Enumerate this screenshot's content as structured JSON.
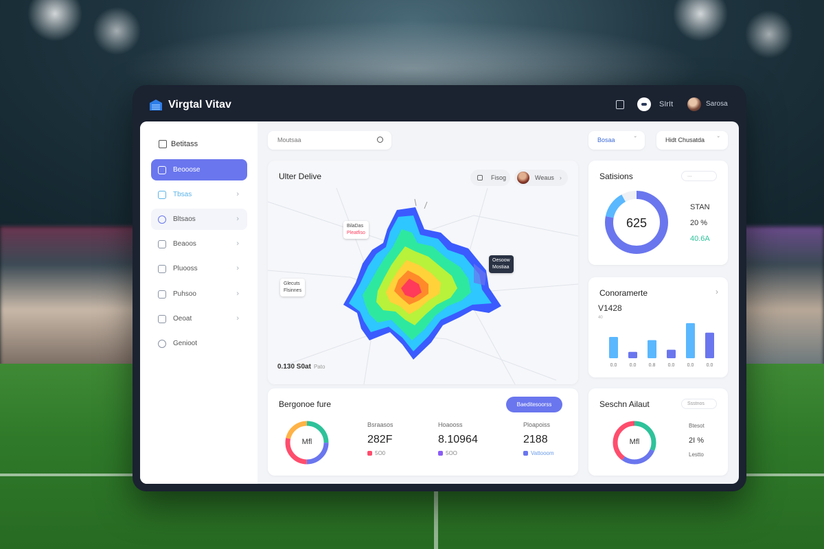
{
  "app": {
    "title": "Virgtal Vitav"
  },
  "titlebar": {
    "user_label": "SIrIt",
    "account_label": "Sarosa"
  },
  "sidebar": {
    "header": "Betitass",
    "items": [
      {
        "label": "Beooose"
      },
      {
        "label": "Tbsas"
      },
      {
        "label": "Bltsaos"
      },
      {
        "label": "Beaoos"
      },
      {
        "label": "Pluooss"
      },
      {
        "label": "Puhsoo"
      },
      {
        "label": "Oeoat"
      },
      {
        "label": "Genioot"
      }
    ]
  },
  "search": {
    "placeholder": "Moutsaa"
  },
  "top_controls": {
    "filter_label": "Bosaa",
    "dropdown_label": "Hidt Chusatda"
  },
  "map": {
    "title": "Ulter Delive",
    "pill_label": "Fisog",
    "player_pill_label": "Weaus",
    "tooltips": [
      {
        "line1": "BilaDas",
        "line2": "Pleatfiso"
      },
      {
        "line1": "Glecuts",
        "line2": "Flsinnes"
      },
      {
        "line1": "Oesoow",
        "line2": "Mostiaa"
      }
    ],
    "footer_value": "0.130 S0at",
    "footer_sub": "Pato",
    "heat_palette": [
      "#3b5bff",
      "#2ec7ff",
      "#2ee8a0",
      "#b8f23a",
      "#ffd23a",
      "#ff8a2a",
      "#ff3a5a"
    ]
  },
  "breakdown": {
    "title": "Bergonoe fure",
    "button_label": "Baeditesoorss",
    "donut_label": "Mfl",
    "donut_colors": [
      "#2ec29a",
      "#6a76ee",
      "#ff4d6d",
      "#ffb347"
    ],
    "stats": [
      {
        "label": "Bsraasos",
        "value": "282F",
        "sub": "5O0",
        "sub_color": "#ff4d6d"
      },
      {
        "label": "Hoaooss",
        "value": "8.10964",
        "sub": "5OO",
        "sub_color": "#8a5cf6"
      },
      {
        "label": "Ploapoiss",
        "value": "2188",
        "sub": "Vattooom",
        "sub_color": "#6a76ee"
      }
    ]
  },
  "score_card": {
    "title": "Satisions",
    "value": "625",
    "ring_fraction": 0.78,
    "ring_colors": [
      "#6a76ee",
      "#5ab8ff"
    ],
    "stats": [
      {
        "text": "STAN",
        "color": "#333333"
      },
      {
        "text": "20 %",
        "color": "#333333"
      },
      {
        "text": "40.6A",
        "color": "#2ec29a"
      }
    ]
  },
  "bars_card": {
    "title": "Conoramerte",
    "value": "V1428",
    "axis_label": "40",
    "chart_data": {
      "type": "bar",
      "categories": [
        "0.0",
        "0.0",
        "0.8",
        "0.0",
        "0.0",
        "0.0"
      ],
      "values": [
        20,
        6,
        17,
        8,
        33,
        24
      ],
      "colors": [
        "#5ab8ff",
        "#6a76ee",
        "#5ab8ff",
        "#6a76ee",
        "#5ab8ff",
        "#6a76ee"
      ],
      "ylim": [
        0,
        40
      ]
    }
  },
  "session_card": {
    "title": "Seschn Ailaut",
    "pill_label": "Ssstnos",
    "donut_label": "Mfl",
    "donut_colors": [
      "#2ec29a",
      "#6a76ee",
      "#ff4d6d"
    ],
    "stats": [
      {
        "text": "Btesot"
      },
      {
        "text": "2I % "
      },
      {
        "text": "Lestto"
      }
    ]
  }
}
